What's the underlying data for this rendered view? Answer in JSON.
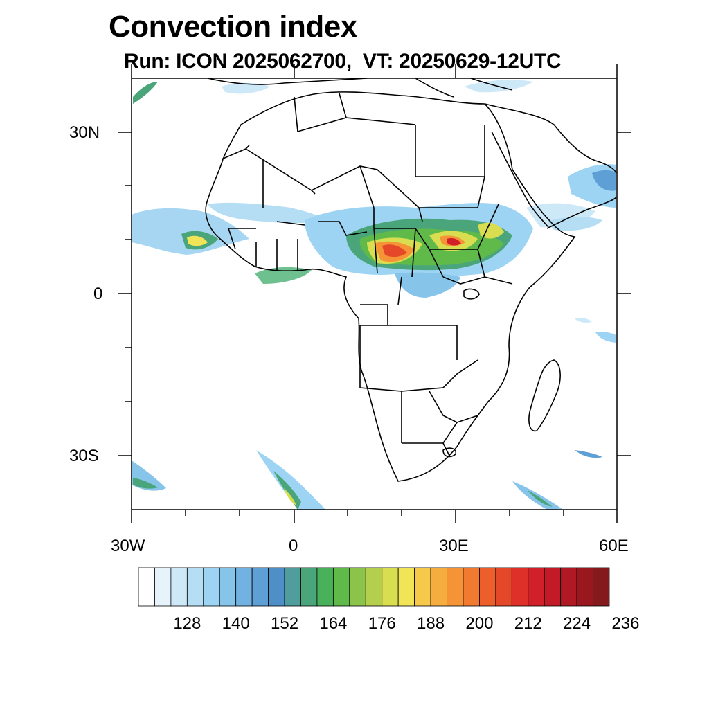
{
  "title": "Convection index",
  "subtitle": "Run: ICON 2025062700,  VT: 20250629-12UTC",
  "map": {
    "region": "Africa",
    "lon_range": [
      -30,
      60
    ],
    "lat_range": [
      -40,
      40
    ],
    "x_ticks": [
      {
        "label": "30W",
        "lon": -30
      },
      {
        "label": "0",
        "lon": 0
      },
      {
        "label": "30E",
        "lon": 30
      },
      {
        "label": "60E",
        "lon": 60
      }
    ],
    "y_ticks": [
      {
        "label": "30N",
        "lat": 30
      },
      {
        "label": "0",
        "lat": 0
      },
      {
        "label": "30S",
        "lat": -30
      }
    ]
  },
  "colorbar": {
    "colors": [
      "#ffffff",
      "#e6f3fb",
      "#cde9f7",
      "#b5def5",
      "#9dd4f3",
      "#86c4ea",
      "#72b2e2",
      "#5e9fd6",
      "#4f8fc7",
      "#4f9d9c",
      "#4aa67a",
      "#49b15a",
      "#5fba4a",
      "#8cc44b",
      "#b3cf4d",
      "#d9dd50",
      "#f2e457",
      "#f7c94a",
      "#f6ad40",
      "#f49437",
      "#f07b30",
      "#ec5f2b",
      "#e54729",
      "#de3028",
      "#d12027",
      "#c21a26",
      "#b01824",
      "#991820",
      "#851a1d"
    ],
    "labels": [
      "128",
      "140",
      "152",
      "164",
      "176",
      "188",
      "200",
      "212",
      "224",
      "236"
    ]
  }
}
